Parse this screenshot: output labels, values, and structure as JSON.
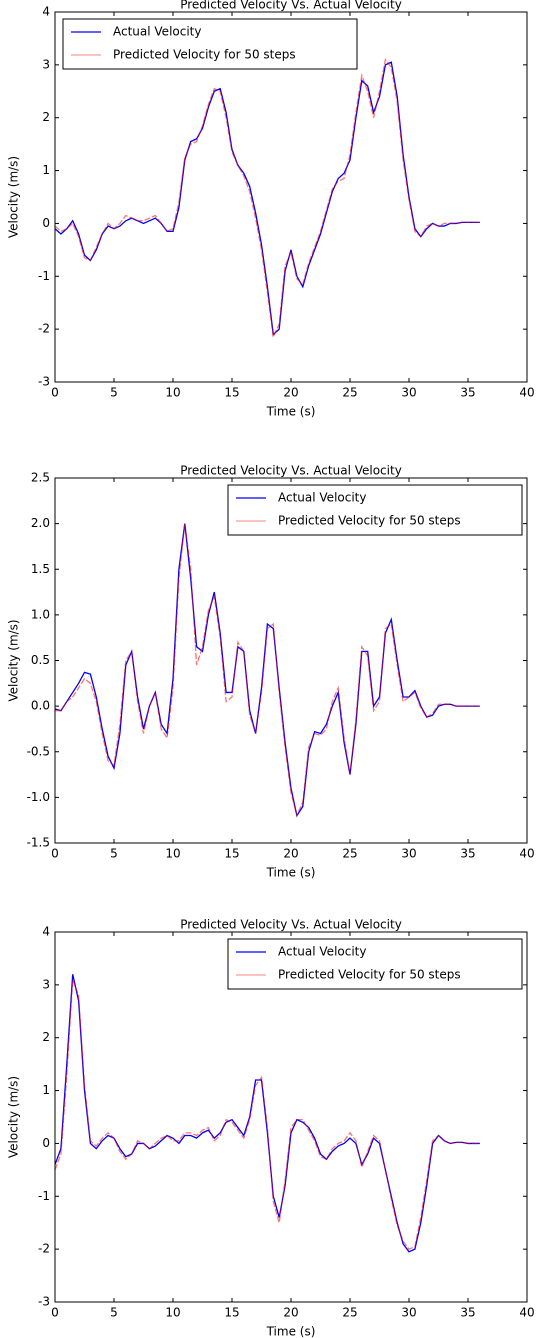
{
  "chart_data": [
    {
      "type": "line",
      "title": "Predicted Velocity Vs. Actual Velocity",
      "x_label": "Time (s)",
      "y_label": "Velocity (m/s)",
      "legend": "upper left",
      "xlim": [
        0,
        40
      ],
      "xticks": [
        0,
        5,
        10,
        15,
        20,
        25,
        30,
        35,
        40
      ],
      "ylim": [
        -3,
        4
      ],
      "yticks": [
        -3,
        -2,
        -1,
        0,
        1,
        2,
        3,
        4
      ],
      "x": [
        0,
        0.5,
        1,
        1.5,
        2,
        2.5,
        3,
        3.5,
        4,
        4.5,
        5,
        5.5,
        6,
        6.5,
        7,
        7.5,
        8,
        8.5,
        9,
        9.5,
        10,
        10.5,
        11,
        11.5,
        12,
        12.5,
        13,
        13.5,
        14,
        14.5,
        15,
        15.5,
        16,
        16.5,
        17,
        17.5,
        18,
        18.5,
        19,
        19.5,
        20,
        20.5,
        21,
        21.5,
        22,
        22.5,
        23,
        23.5,
        24,
        24.5,
        25,
        25.5,
        26,
        26.5,
        27,
        27.5,
        28,
        28.5,
        29,
        29.5,
        30,
        30.5,
        31,
        31.5,
        32,
        32.5,
        33,
        33.5,
        34,
        34.5,
        35,
        35.5,
        36
      ],
      "series": [
        {
          "name": "Actual Velocity",
          "color": "#0000ff",
          "values": [
            -0.1,
            -0.2,
            -0.1,
            0.05,
            -0.2,
            -0.6,
            -0.7,
            -0.5,
            -0.2,
            -0.05,
            -0.1,
            -0.05,
            0.05,
            0.1,
            0.05,
            0.0,
            0.05,
            0.1,
            0.0,
            -0.15,
            -0.15,
            0.3,
            1.2,
            1.55,
            1.6,
            1.8,
            2.2,
            2.5,
            2.55,
            2.1,
            1.4,
            1.1,
            0.95,
            0.7,
            0.2,
            -0.4,
            -1.2,
            -2.1,
            -2.0,
            -0.9,
            -0.5,
            -1.0,
            -1.2,
            -0.8,
            -0.5,
            -0.2,
            0.2,
            0.6,
            0.85,
            0.95,
            1.2,
            2.0,
            2.7,
            2.6,
            2.1,
            2.4,
            3.0,
            3.05,
            2.4,
            1.3,
            0.5,
            -0.1,
            -0.25,
            -0.1,
            0.0,
            -0.05,
            -0.05,
            0.0,
            0.0,
            0.02,
            0.02,
            0.02,
            0.02
          ]
        },
        {
          "name": "Predicted Velocity for 50 steps",
          "color": "#ff0000",
          "values": [
            -0.05,
            -0.15,
            -0.1,
            0.0,
            -0.25,
            -0.65,
            -0.7,
            -0.45,
            -0.2,
            0.0,
            -0.1,
            0.0,
            0.15,
            0.1,
            0.05,
            0.05,
            0.1,
            0.15,
            0.0,
            -0.15,
            -0.1,
            0.4,
            1.25,
            1.5,
            1.55,
            1.85,
            2.25,
            2.55,
            2.5,
            2.0,
            1.35,
            1.1,
            0.9,
            0.6,
            0.1,
            -0.5,
            -1.3,
            -2.15,
            -1.9,
            -0.8,
            -0.55,
            -1.05,
            -1.15,
            -0.75,
            -0.45,
            -0.15,
            0.25,
            0.65,
            0.8,
            0.85,
            1.3,
            2.1,
            2.8,
            2.5,
            2.0,
            2.5,
            3.1,
            2.95,
            2.3,
            1.2,
            0.45,
            -0.15,
            -0.25,
            -0.05,
            0.0,
            -0.05,
            0.0,
            0.0,
            0.0,
            0.02,
            0.02,
            0.02,
            0.02
          ]
        }
      ]
    },
    {
      "type": "line",
      "title": "Predicted Velocity Vs. Actual Velocity",
      "x_label": "Time (s)",
      "y_label": "Velocity (m/s)",
      "legend": "upper right",
      "xlim": [
        0,
        40
      ],
      "xticks": [
        0,
        5,
        10,
        15,
        20,
        25,
        30,
        35,
        40
      ],
      "ylim": [
        -1.5,
        2.5
      ],
      "yticks": [
        -1.5,
        {
          "value": -1,
          "label": "-1.0"
        },
        -0.5,
        {
          "value": 0,
          "label": "0.0"
        },
        0.5,
        {
          "value": 1,
          "label": "1.0"
        },
        1.5,
        {
          "value": 2,
          "label": "2.0"
        },
        2.5
      ],
      "x": [
        0,
        0.5,
        1,
        1.5,
        2,
        2.5,
        3,
        3.5,
        4,
        4.5,
        5,
        5.5,
        6,
        6.5,
        7,
        7.5,
        8,
        8.5,
        9,
        9.5,
        10,
        10.5,
        11,
        11.5,
        12,
        12.5,
        13,
        13.5,
        14,
        14.5,
        15,
        15.5,
        16,
        16.5,
        17,
        17.5,
        18,
        18.5,
        19,
        19.5,
        20,
        20.5,
        21,
        21.5,
        22,
        22.5,
        23,
        23.5,
        24,
        24.5,
        25,
        25.5,
        26,
        26.5,
        27,
        27.5,
        28,
        28.5,
        29,
        29.5,
        30,
        30.5,
        31,
        31.5,
        32,
        32.5,
        33,
        33.5,
        34,
        34.5,
        35,
        35.5,
        36
      ],
      "series": [
        {
          "name": "Actual Velocity",
          "color": "#0000ff",
          "values": [
            -0.03,
            -0.05,
            0.05,
            0.15,
            0.25,
            0.37,
            0.35,
            0.1,
            -0.25,
            -0.55,
            -0.68,
            -0.3,
            0.45,
            0.6,
            0.1,
            -0.25,
            0.0,
            0.15,
            -0.2,
            -0.3,
            0.3,
            1.5,
            2.0,
            1.4,
            0.65,
            0.6,
            1.0,
            1.25,
            0.8,
            0.15,
            0.15,
            0.65,
            0.6,
            -0.05,
            -0.3,
            0.2,
            0.9,
            0.85,
            0.2,
            -0.4,
            -0.9,
            -1.2,
            -1.1,
            -0.5,
            -0.28,
            -0.3,
            -0.2,
            0.0,
            0.15,
            -0.4,
            -0.75,
            -0.2,
            0.6,
            0.6,
            0.0,
            0.1,
            0.8,
            0.95,
            0.5,
            0.1,
            0.1,
            0.17,
            0.0,
            -0.12,
            -0.1,
            0.0,
            0.02,
            0.02,
            0.0,
            0.0,
            0.0,
            0.0,
            0.0
          ]
        },
        {
          "name": "Predicted Velocity for 50 steps",
          "color": "#ff0000",
          "values": [
            -0.05,
            -0.05,
            0.05,
            0.1,
            0.2,
            0.3,
            0.25,
            0.05,
            -0.3,
            -0.6,
            -0.65,
            -0.2,
            0.5,
            0.6,
            0.05,
            -0.3,
            0.0,
            0.15,
            -0.25,
            -0.35,
            0.2,
            1.4,
            2.0,
            1.5,
            0.45,
            0.65,
            1.05,
            1.2,
            0.75,
            0.05,
            0.1,
            0.7,
            0.6,
            -0.1,
            -0.3,
            0.15,
            0.85,
            0.9,
            0.15,
            -0.45,
            -0.95,
            -1.2,
            -1.05,
            -0.45,
            -0.3,
            -0.32,
            -0.25,
            0.05,
            0.2,
            -0.35,
            -0.75,
            -0.15,
            0.65,
            0.55,
            -0.05,
            0.05,
            0.85,
            0.9,
            0.45,
            0.05,
            0.1,
            0.15,
            -0.02,
            -0.12,
            -0.08,
            0.02,
            0.02,
            0.02,
            0.0,
            0.0,
            0.0,
            0.0,
            0.0
          ]
        }
      ]
    },
    {
      "type": "line",
      "title": "Predicted Velocity Vs. Actual Velocity",
      "x_label": "Time (s)",
      "y_label": "Velocity (m/s)",
      "legend": "upper right",
      "xlim": [
        0,
        40
      ],
      "xticks": [
        0,
        5,
        10,
        15,
        20,
        25,
        30,
        35,
        40
      ],
      "ylim": [
        -3,
        4
      ],
      "yticks": [
        -3,
        -2,
        -1,
        0,
        1,
        2,
        3,
        4
      ],
      "x": [
        0,
        0.5,
        1,
        1.5,
        2,
        2.5,
        3,
        3.5,
        4,
        4.5,
        5,
        5.5,
        6,
        6.5,
        7,
        7.5,
        8,
        8.5,
        9,
        9.5,
        10,
        10.5,
        11,
        11.5,
        12,
        12.5,
        13,
        13.5,
        14,
        14.5,
        15,
        15.5,
        16,
        16.5,
        17,
        17.5,
        18,
        18.5,
        19,
        19.5,
        20,
        20.5,
        21,
        21.5,
        22,
        22.5,
        23,
        23.5,
        24,
        24.5,
        25,
        25.5,
        26,
        26.5,
        27,
        27.5,
        28,
        28.5,
        29,
        29.5,
        30,
        30.5,
        31,
        31.5,
        32,
        32.5,
        33,
        33.5,
        34,
        34.5,
        35,
        35.5,
        36
      ],
      "series": [
        {
          "name": "Actual Velocity",
          "color": "#0000ff",
          "values": [
            -0.4,
            -0.1,
            1.5,
            3.2,
            2.7,
            1.0,
            0.0,
            -0.1,
            0.05,
            0.15,
            0.1,
            -0.1,
            -0.25,
            -0.2,
            0.0,
            0.0,
            -0.1,
            -0.05,
            0.05,
            0.15,
            0.1,
            0.0,
            0.15,
            0.15,
            0.1,
            0.2,
            0.25,
            0.1,
            0.2,
            0.4,
            0.45,
            0.3,
            0.15,
            0.5,
            1.2,
            1.2,
            0.2,
            -1.0,
            -1.4,
            -0.8,
            0.2,
            0.45,
            0.4,
            0.3,
            0.1,
            -0.2,
            -0.3,
            -0.15,
            -0.05,
            0.0,
            0.1,
            0.0,
            -0.4,
            -0.2,
            0.1,
            0.0,
            -0.5,
            -1.0,
            -1.5,
            -1.9,
            -2.05,
            -2.0,
            -1.5,
            -0.8,
            0.0,
            0.15,
            0.05,
            0.0,
            0.02,
            0.02,
            0.0,
            0.0,
            0.0
          ]
        },
        {
          "name": "Predicted Velocity for 50 steps",
          "color": "#ff0000",
          "values": [
            -0.5,
            -0.2,
            1.3,
            3.1,
            2.8,
            1.1,
            0.05,
            -0.05,
            0.1,
            0.2,
            0.1,
            -0.15,
            -0.3,
            -0.2,
            0.05,
            0.0,
            -0.1,
            0.0,
            0.1,
            0.15,
            0.05,
            0.05,
            0.2,
            0.2,
            0.15,
            0.25,
            0.3,
            0.05,
            0.15,
            0.45,
            0.4,
            0.25,
            0.1,
            0.45,
            1.1,
            1.25,
            0.3,
            -1.1,
            -1.5,
            -0.7,
            0.3,
            0.45,
            0.45,
            0.25,
            0.05,
            -0.25,
            -0.3,
            -0.1,
            0.0,
            0.05,
            0.2,
            0.05,
            -0.45,
            -0.15,
            0.15,
            0.05,
            -0.5,
            -1.05,
            -1.55,
            -1.85,
            -2.0,
            -1.95,
            -1.4,
            -0.7,
            0.05,
            0.15,
            0.05,
            0.0,
            0.02,
            0.02,
            0.0,
            0.0,
            0.0
          ]
        }
      ]
    }
  ]
}
